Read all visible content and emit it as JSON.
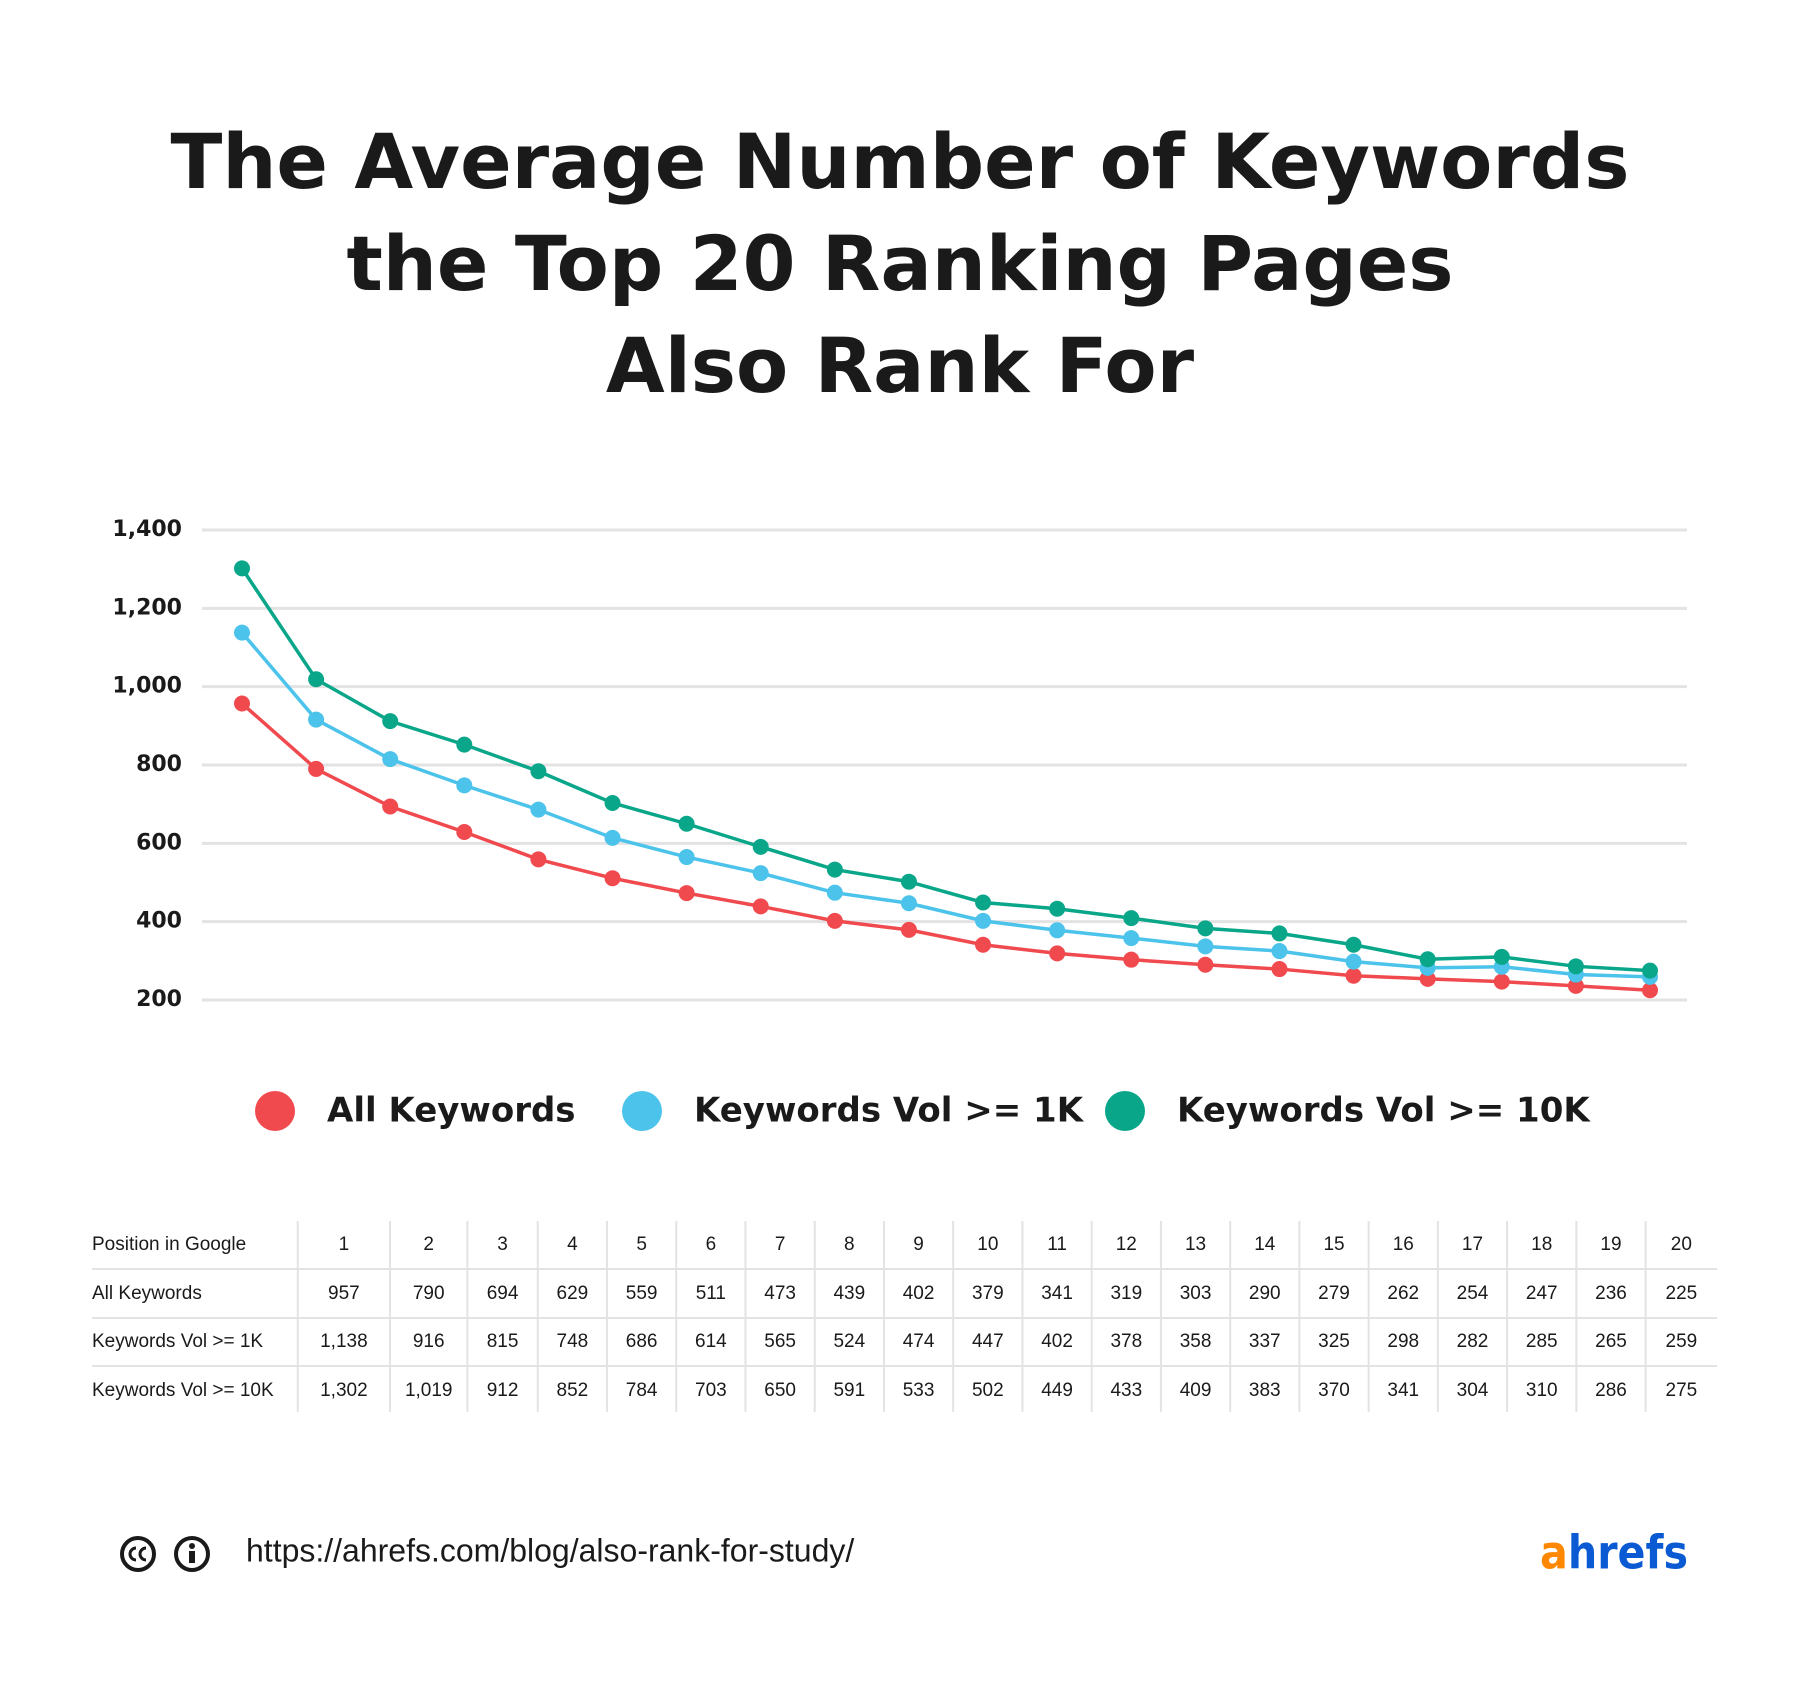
{
  "chart_data": {
    "type": "line",
    "title": [
      "The Average Number of Keywords",
      "the Top 20 Ranking Pages",
      "Also Rank For"
    ],
    "x": [
      1,
      2,
      3,
      4,
      5,
      6,
      7,
      8,
      9,
      10,
      11,
      12,
      13,
      14,
      15,
      16,
      17,
      18,
      19,
      20
    ],
    "ylim": [
      200,
      1400
    ],
    "yticks": [
      200,
      400,
      600,
      800,
      {
        "value": 1000,
        "label": "1,000"
      },
      {
        "value": 1200,
        "label": "1,200"
      },
      {
        "value": 1400,
        "label": "1,400"
      }
    ],
    "grid": true,
    "series": [
      {
        "name": "All Keywords",
        "color": "#f04a4f",
        "values": [
          957,
          790,
          694,
          629,
          559,
          511,
          473,
          439,
          402,
          379,
          341,
          319,
          303,
          290,
          279,
          262,
          254,
          247,
          236,
          225
        ],
        "value_labels": [
          "957",
          "790",
          "694",
          "629",
          "559",
          "511",
          "473",
          "439",
          "402",
          "379",
          "341",
          "319",
          "303",
          "290",
          "279",
          "262",
          "254",
          "247",
          "236",
          "225"
        ]
      },
      {
        "name": "Keywords Vol >= 1K",
        "color": "#4cc3ea",
        "values": [
          1138,
          916,
          815,
          748,
          686,
          614,
          565,
          524,
          474,
          447,
          402,
          378,
          358,
          337,
          325,
          298,
          282,
          285,
          265,
          259
        ],
        "value_labels": [
          "1,138",
          "916",
          "815",
          "748",
          "686",
          "614",
          "565",
          "524",
          "474",
          "447",
          "402",
          "378",
          "358",
          "337",
          "325",
          "298",
          "282",
          "285",
          "265",
          "259"
        ]
      },
      {
        "name": "Keywords Vol >= 10K",
        "color": "#0aa68a",
        "values": [
          1302,
          1019,
          912,
          852,
          784,
          703,
          650,
          591,
          533,
          502,
          449,
          433,
          409,
          383,
          370,
          341,
          304,
          310,
          286,
          275
        ],
        "value_labels": [
          "1,302",
          "1,019",
          "912",
          "852",
          "784",
          "703",
          "650",
          "591",
          "533",
          "502",
          "449",
          "433",
          "409",
          "383",
          "370",
          "341",
          "304",
          "310",
          "286",
          "275"
        ]
      }
    ]
  },
  "table": {
    "corner": "Position in Google"
  },
  "footer": {
    "url": "https://ahrefs.com/blog/also-rank-for-study/",
    "logo": "ahrefs"
  }
}
